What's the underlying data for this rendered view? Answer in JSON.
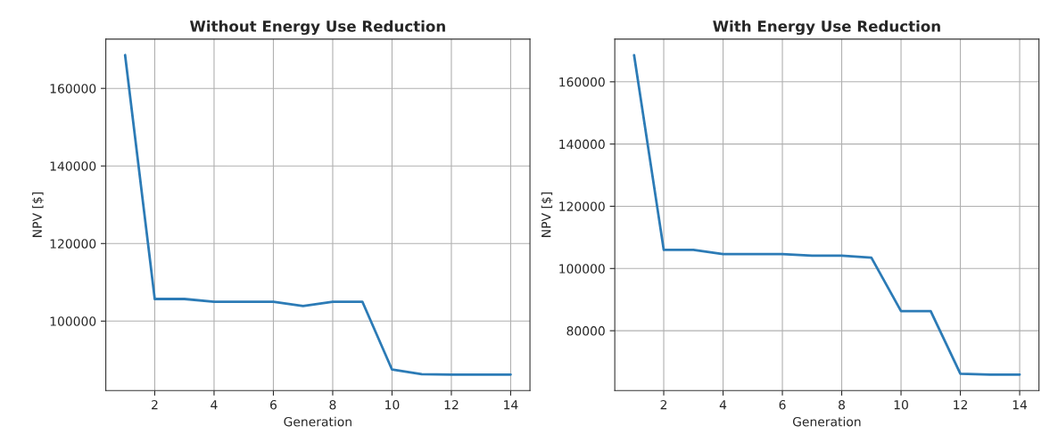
{
  "chart_data": [
    {
      "type": "line",
      "title": "Without Energy Use Reduction",
      "xlabel": "Generation",
      "ylabel": "NPV [$]",
      "x": [
        1,
        2,
        3,
        4,
        5,
        6,
        7,
        8,
        9,
        10,
        11,
        12,
        13,
        14
      ],
      "series": [
        {
          "color": "#2c7bb6",
          "values": [
            168600,
            105700,
            105700,
            105000,
            105000,
            105000,
            103900,
            105000,
            105000,
            87500,
            86300,
            86200,
            86200,
            86200
          ]
        }
      ],
      "xlim": [
        0.35,
        14.65
      ],
      "ylim": [
        82080,
        172720
      ],
      "xticks": [
        2,
        4,
        6,
        8,
        10,
        12,
        14
      ],
      "yticks": [
        100000,
        120000,
        140000,
        160000
      ],
      "grid": true
    },
    {
      "type": "line",
      "title": "With Energy Use Reduction",
      "xlabel": "Generation",
      "ylabel": "NPV [$]",
      "x": [
        1,
        2,
        3,
        4,
        5,
        6,
        7,
        8,
        9,
        10,
        11,
        12,
        13,
        14
      ],
      "series": [
        {
          "color": "#2c7bb6",
          "values": [
            168600,
            106000,
            106000,
            104600,
            104600,
            104600,
            104100,
            104100,
            103500,
            86300,
            86300,
            66200,
            65900,
            65900
          ]
        }
      ],
      "xlim": [
        0.35,
        14.65
      ],
      "ylim": [
        60760,
        173740
      ],
      "xticks": [
        2,
        4,
        6,
        8,
        10,
        12,
        14
      ],
      "yticks": [
        80000,
        100000,
        120000,
        140000,
        160000
      ],
      "grid": true
    }
  ]
}
